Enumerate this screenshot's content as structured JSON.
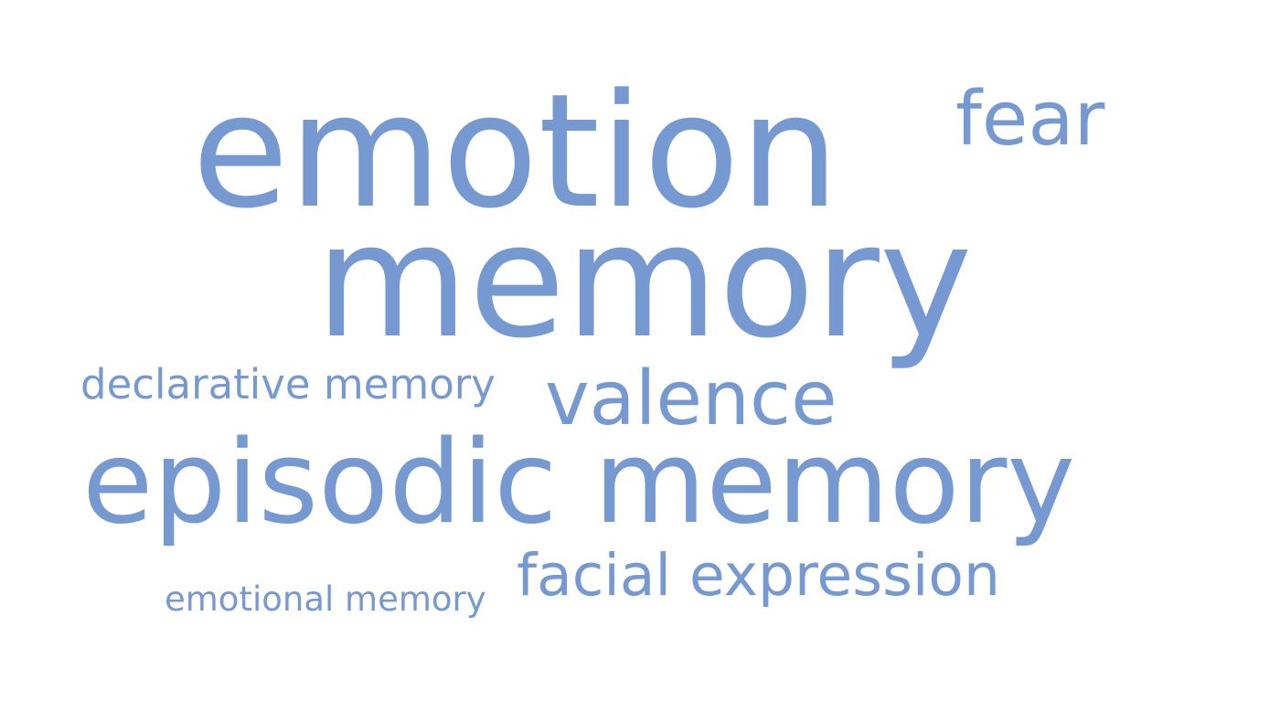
{
  "wordcloud": {
    "color": "#7799d2",
    "words": {
      "emotion": "emotion",
      "fear": "fear",
      "memory": "memory",
      "declarative_memory": "declarative memory",
      "valence": "valence",
      "episodic_memory": "episodic memory",
      "facial_expression": "facial expression",
      "emotional_memory": "emotional memory"
    }
  }
}
